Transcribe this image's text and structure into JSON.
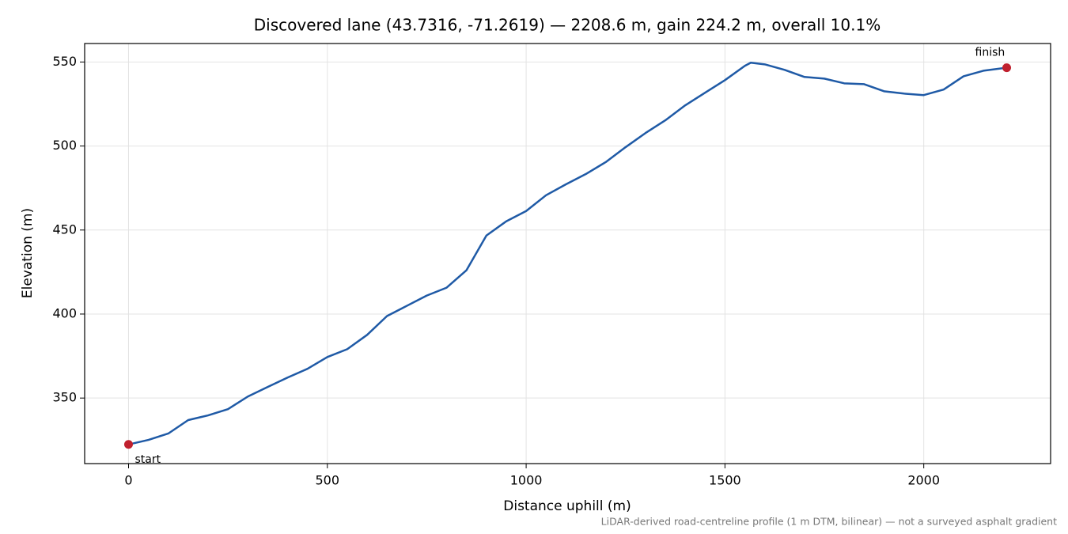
{
  "chart_data": {
    "type": "line",
    "title": "Discovered lane (43.7316, -71.2619) — 2208.6 m, gain 224.2 m, overall 10.1%",
    "x_label": "Distance uphill (m)",
    "y_label": "Elevation (m)",
    "footnote": "LiDAR-derived road-centreline profile (1 m DTM, bilinear) — not a surveyed asphalt gradient",
    "x": [
      0,
      50,
      100,
      150,
      200,
      250,
      300,
      350,
      400,
      450,
      500,
      550,
      600,
      650,
      700,
      750,
      800,
      850,
      900,
      950,
      1000,
      1050,
      1100,
      1150,
      1200,
      1250,
      1300,
      1350,
      1400,
      1450,
      1500,
      1550,
      1565,
      1600,
      1650,
      1700,
      1750,
      1800,
      1850,
      1900,
      1950,
      2000,
      2050,
      2100,
      2150,
      2208.6
    ],
    "series": [
      {
        "name": "Elevation",
        "color": "#1f5aa6",
        "values": [
          322.4,
          325.1,
          328.9,
          336.9,
          339.7,
          343.4,
          350.9,
          356.6,
          362.2,
          367.4,
          374.4,
          379.1,
          387.6,
          398.8,
          404.9,
          411.0,
          415.7,
          426.1,
          446.7,
          455.2,
          461.3,
          470.7,
          477.2,
          483.3,
          490.4,
          499.3,
          507.7,
          515.3,
          524.2,
          531.7,
          539.2,
          547.7,
          549.6,
          548.6,
          545.3,
          541.1,
          540.1,
          537.3,
          536.8,
          532.6,
          531.2,
          530.3,
          533.6,
          541.5,
          544.8,
          546.6
        ]
      }
    ],
    "annotations": [
      {
        "text": "start",
        "x": 0,
        "y": 322.4,
        "color": "#c0202e"
      },
      {
        "text": "finish",
        "x": 2208.6,
        "y": 546.6,
        "color": "#c0202e"
      }
    ],
    "xlim": [
      -110.4,
      2319
    ],
    "ylim": [
      311,
      561
    ],
    "xticks": [
      0,
      500,
      1000,
      1500,
      2000
    ],
    "yticks": [
      350,
      400,
      450,
      500,
      550
    ],
    "grid": true
  }
}
